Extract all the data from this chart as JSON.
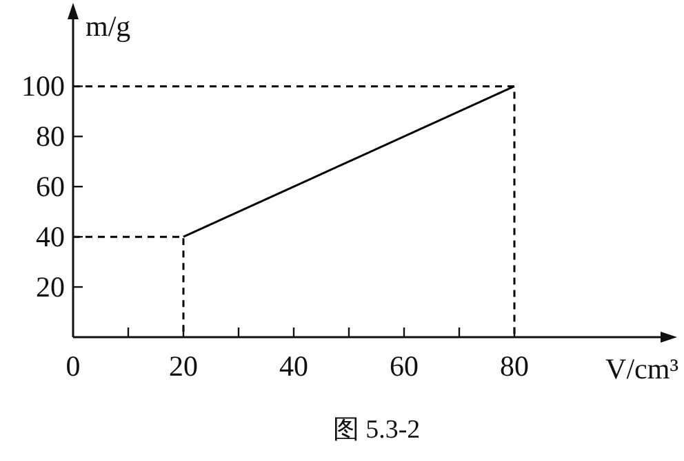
{
  "chart_data": {
    "type": "line",
    "xlabel": "V/cm³",
    "ylabel": "m/g",
    "annotations": [
      "图 5.3-2"
    ],
    "xlim": [
      0,
      107
    ],
    "ylim": [
      0,
      130
    ],
    "xticks": [
      0,
      {
        "value": 10,
        "label": null
      },
      20,
      {
        "value": 30,
        "label": null
      },
      40,
      {
        "value": 50,
        "label": null
      },
      60,
      {
        "value": 70,
        "label": null
      },
      80
    ],
    "yticks": [
      20,
      40,
      60,
      80,
      100
    ],
    "grid": false,
    "series": [
      {
        "color": "#000000",
        "line_style": "solid",
        "x": [
          20,
          80
        ],
        "values": [
          40,
          100
        ]
      },
      {
        "color": "#000000",
        "line_style": "dashed",
        "x": [
          0,
          20,
          20
        ],
        "values": [
          40,
          40,
          0
        ]
      },
      {
        "color": "#000000",
        "line_style": "dashed",
        "x": [
          0,
          80,
          80
        ],
        "values": [
          100,
          100,
          0
        ]
      }
    ]
  }
}
